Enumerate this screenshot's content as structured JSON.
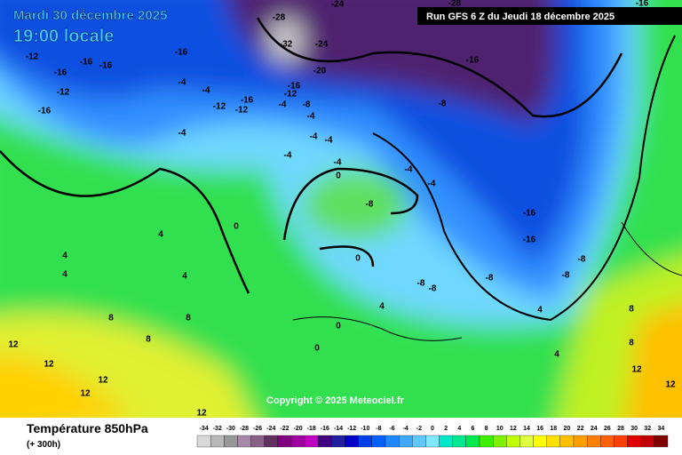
{
  "header": {
    "date": "Mardi 30 décembre 2025",
    "time": "19:00 locale",
    "run": "Run GFS 6 Z du Jeudi 18 décembre 2025"
  },
  "copyright": "Copyright © 2025 Meteociel.fr",
  "legend": {
    "title": "Température 850hPa",
    "subtitle": "(+ 300h)",
    "values": [
      -34,
      -32,
      -30,
      -28,
      -26,
      -24,
      -22,
      -20,
      -18,
      -16,
      -14,
      -12,
      -10,
      -8,
      -6,
      -4,
      -2,
      0,
      2,
      4,
      6,
      8,
      10,
      12,
      14,
      16,
      18,
      20,
      22,
      24,
      26,
      28,
      30,
      32,
      34
    ],
    "colors": [
      "#d8d8d8",
      "#b8b8b8",
      "#989898",
      "#a888a8",
      "#886088",
      "#603060",
      "#800080",
      "#a000a0",
      "#c000c0",
      "#400080",
      "#2020a0",
      "#0000c8",
      "#0040e8",
      "#0060ff",
      "#2088ff",
      "#40a8ff",
      "#60c8ff",
      "#80e8ff",
      "#00e8c8",
      "#00e890",
      "#00e850",
      "#40f000",
      "#80f000",
      "#c0ff00",
      "#e0ff40",
      "#ffff00",
      "#ffe000",
      "#ffc000",
      "#ffa000",
      "#ff8000",
      "#ff6000",
      "#ff4000",
      "#e00000",
      "#c00000",
      "#800000"
    ]
  },
  "map_labels": [
    "-28",
    "-24",
    "-32",
    "-24",
    "-20",
    "-16",
    "-12",
    "-16",
    "-12",
    "-16",
    "-16",
    "-16",
    "-16",
    "-12",
    "-16",
    "-4",
    "-4",
    "-12",
    "-16",
    "-12",
    "-4",
    "-8",
    "-4",
    "-8",
    "-4",
    "-4",
    "-4",
    "-4",
    "-4",
    "0",
    "-4",
    "-4",
    "-8",
    "-16",
    "-16",
    "0",
    "4",
    "4",
    "4",
    "4",
    "8",
    "8",
    "8",
    "0",
    "0",
    "0",
    "-8",
    "-8",
    "-8",
    "-8",
    "-8",
    "4",
    "12",
    "12",
    "12",
    "12",
    "12",
    "4",
    "8",
    "4",
    "8",
    "12",
    "12",
    "-16",
    "-28"
  ]
}
